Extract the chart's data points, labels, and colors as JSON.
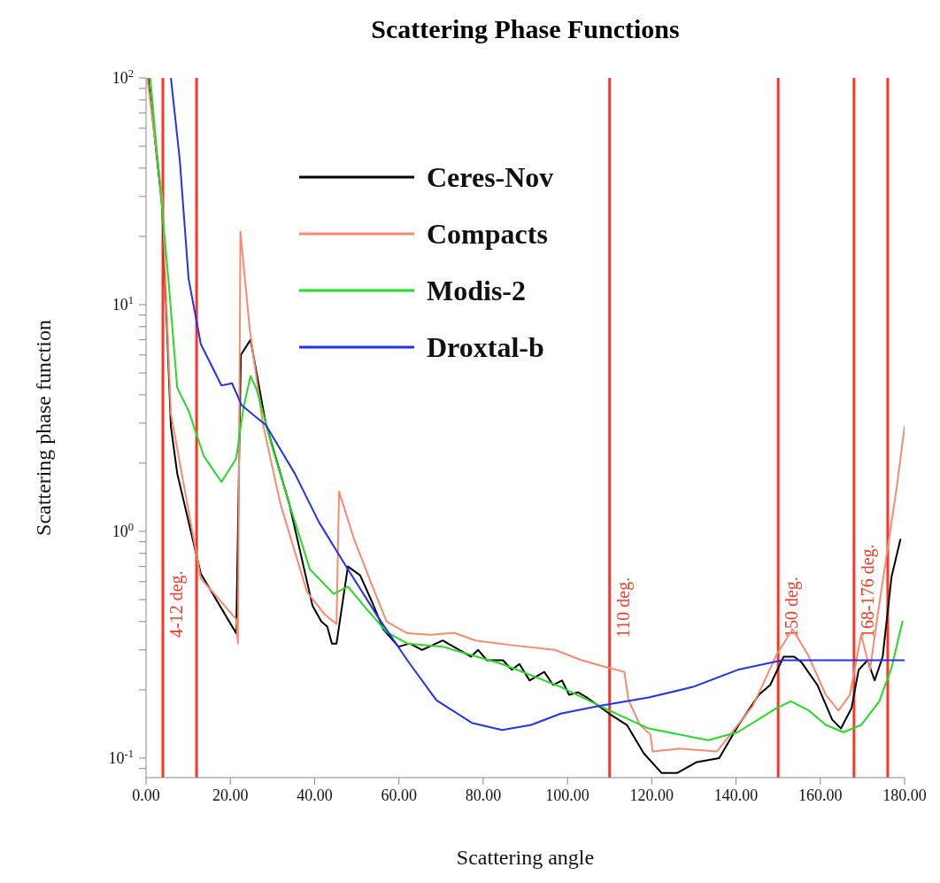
{
  "chart_data": {
    "type": "line",
    "title": "Scattering Phase Functions",
    "xlabel": "Scattering angle",
    "ylabel": "Scattering phase function",
    "log": "y",
    "legend": "top",
    "line_style": "solid",
    "xlim": [
      0,
      180
    ],
    "ylim": [
      0.082,
      100
    ],
    "xticks": [
      {
        "value": 0,
        "label": "0.00"
      },
      {
        "value": 20,
        "label": "20.00"
      },
      {
        "value": 40,
        "label": "40.00"
      },
      {
        "value": 60,
        "label": "60.00"
      },
      {
        "value": 80,
        "label": "80.00"
      },
      {
        "value": 100,
        "label": "100.00"
      },
      {
        "value": 120,
        "label": "120.00"
      },
      {
        "value": 140,
        "label": "140.00"
      },
      {
        "value": 160,
        "label": "160.00"
      },
      {
        "value": 180,
        "label": "180.00"
      }
    ],
    "yticks": [
      {
        "value": 0.09,
        "label": null
      },
      {
        "value": 0.1,
        "label": "10$^{-1}$"
      },
      {
        "value": 0.2,
        "label": null
      },
      {
        "value": 0.3,
        "label": null
      },
      {
        "value": 0.4,
        "label": null
      },
      {
        "value": 0.5,
        "label": null
      },
      {
        "value": 0.6,
        "label": null
      },
      {
        "value": 0.7,
        "label": null
      },
      {
        "value": 0.8,
        "label": null
      },
      {
        "value": 0.9,
        "label": null
      },
      {
        "value": 1,
        "label": "10$^{0}$"
      },
      {
        "value": 2,
        "label": null
      },
      {
        "value": 3,
        "label": null
      },
      {
        "value": 4,
        "label": null
      },
      {
        "value": 5,
        "label": null
      },
      {
        "value": 6,
        "label": null
      },
      {
        "value": 7,
        "label": null
      },
      {
        "value": 8,
        "label": null
      },
      {
        "value": 9,
        "label": null
      },
      {
        "value": 10,
        "label": "10$^{1}$"
      },
      {
        "value": 20,
        "label": null
      },
      {
        "value": 30,
        "label": null
      },
      {
        "value": 40,
        "label": null
      },
      {
        "value": 50,
        "label": null
      },
      {
        "value": 60,
        "label": null
      },
      {
        "value": 70,
        "label": null
      },
      {
        "value": 80,
        "label": null
      },
      {
        "value": 90,
        "label": null
      },
      {
        "value": 100,
        "label": "10$^{2}$"
      }
    ],
    "ref_lines": [
      {
        "axis": "x",
        "value": 4,
        "label": "4-12 deg.",
        "color": "#ff3322"
      },
      {
        "axis": "x",
        "value": 12,
        "label": null,
        "color": "#ff3322"
      },
      {
        "axis": "x",
        "value": 110,
        "label": "110 deg.",
        "color": "#ff3322"
      },
      {
        "axis": "x",
        "value": 150,
        "label": "150 deg.",
        "color": "#ff3322"
      },
      {
        "axis": "x",
        "value": 168,
        "label": "168-176 deg.",
        "color": "#ff3322"
      },
      {
        "axis": "x",
        "value": 176,
        "label": null,
        "color": "#ff3322"
      }
    ],
    "series": [
      {
        "name": "Ceres-Nov",
        "color": "#000000",
        "x": [
          0.5,
          3.8,
          5.9,
          7.4,
          13,
          21.4,
          22.5,
          24.8,
          28.4,
          34,
          39.5,
          41.6,
          43,
          44.1,
          45.2,
          47.9,
          50.8,
          53.6,
          56.3,
          59.9,
          62.6,
          65.5,
          70.4,
          77.1,
          78.8,
          80.9,
          84.7,
          86.8,
          88.6,
          91,
          94.5,
          96.6,
          98.7,
          100.4,
          102.5,
          104.6,
          109.9,
          114.1,
          118.1,
          122.3,
          126.1,
          130.7,
          136,
          140.4,
          145.4,
          148.1,
          151.3,
          153.8,
          155.5,
          159.3,
          162.8,
          164.9,
          167.4,
          169.1,
          171.2,
          172.9,
          174.8,
          176.9,
          179
        ],
        "values": [
          100,
          27.6,
          2.9,
          1.8,
          0.65,
          0.355,
          6.0,
          7.0,
          3.0,
          1.32,
          0.47,
          0.4,
          0.38,
          0.32,
          0.32,
          0.7,
          0.64,
          0.49,
          0.37,
          0.31,
          0.32,
          0.3,
          0.33,
          0.28,
          0.3,
          0.27,
          0.27,
          0.245,
          0.26,
          0.22,
          0.24,
          0.21,
          0.22,
          0.19,
          0.195,
          0.185,
          0.157,
          0.14,
          0.105,
          0.086,
          0.086,
          0.096,
          0.1,
          0.138,
          0.19,
          0.21,
          0.28,
          0.28,
          0.265,
          0.21,
          0.148,
          0.135,
          0.166,
          0.245,
          0.27,
          0.22,
          0.28,
          0.63,
          0.92
        ]
      },
      {
        "name": "Compacts",
        "color": "#f88a6e",
        "x": [
          0.3,
          3.8,
          5.9,
          13,
          21.4,
          21.8,
          22.4,
          24.6,
          27.7,
          31.9,
          38.2,
          42.4,
          45.2,
          45.8,
          49.4,
          53.6,
          57.1,
          62,
          67.6,
          73.1,
          78.2,
          86.6,
          97,
          103.4,
          109.7,
          113.5,
          114.5,
          117.2,
          119.7,
          120.2,
          126.5,
          135.5,
          144,
          149.6,
          153.4,
          157.1,
          161.3,
          164.3,
          167,
          169.7,
          171.8,
          173.3,
          178.1,
          180
        ],
        "values": [
          100,
          30,
          3.3,
          0.62,
          0.41,
          0.32,
          21,
          7.8,
          3.0,
          1.32,
          0.54,
          0.43,
          0.39,
          1.5,
          0.92,
          0.58,
          0.4,
          0.355,
          0.35,
          0.357,
          0.33,
          0.315,
          0.3,
          0.27,
          0.25,
          0.24,
          0.18,
          0.14,
          0.127,
          0.107,
          0.11,
          0.107,
          0.17,
          0.285,
          0.37,
          0.285,
          0.19,
          0.162,
          0.19,
          0.35,
          0.245,
          0.39,
          1.55,
          2.9
        ]
      },
      {
        "name": "Modis-2",
        "color": "#22dd22",
        "x": [
          1,
          5.3,
          7.4,
          10.1,
          13.7,
          17.9,
          21.4,
          23.1,
          24.8,
          26.3,
          29.8,
          34,
          38.9,
          44.5,
          47.9,
          52.1,
          57.1,
          62,
          70.4,
          84.5,
          98.4,
          109.7,
          119.3,
          133.4,
          140.4,
          149.6,
          153,
          157.1,
          161.3,
          165.5,
          169.7,
          174,
          176.9,
          179.5
        ],
        "values": [
          100,
          13,
          4.3,
          3.4,
          2.15,
          1.65,
          2.1,
          3.5,
          4.85,
          4.2,
          2.4,
          1.32,
          0.68,
          0.53,
          0.57,
          0.46,
          0.36,
          0.32,
          0.31,
          0.26,
          0.206,
          0.163,
          0.135,
          0.12,
          0.13,
          0.166,
          0.178,
          0.163,
          0.14,
          0.13,
          0.14,
          0.178,
          0.25,
          0.4
        ]
      },
      {
        "name": "Droxtal-b",
        "color": "#2233ee",
        "x": [
          5.9,
          8,
          10.1,
          13,
          17.9,
          20.4,
          22.7,
          25.6,
          28.4,
          35.3,
          41,
          47.9,
          55,
          62,
          68.9,
          77.3,
          84.5,
          91.4,
          98.4,
          107.6,
          119.3,
          129.8,
          140.4,
          150.9,
          160,
          170,
          180
        ],
        "values": [
          100,
          43.6,
          13,
          6.7,
          4.4,
          4.5,
          3.6,
          3.25,
          2.95,
          1.8,
          1.1,
          0.68,
          0.42,
          0.27,
          0.18,
          0.143,
          0.133,
          0.14,
          0.157,
          0.17,
          0.185,
          0.206,
          0.245,
          0.27,
          0.27,
          0.27,
          0.27
        ]
      }
    ]
  }
}
